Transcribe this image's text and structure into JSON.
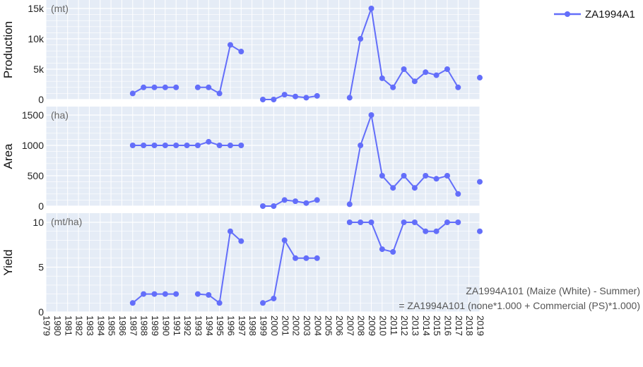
{
  "chart_data": {
    "type": "line",
    "legend": {
      "name": "ZA1994A1",
      "placement": "top-right"
    },
    "color": "#636efa",
    "x_ticks": [
      "1979",
      "1980",
      "1981",
      "1982",
      "1983",
      "1984",
      "1985",
      "1986",
      "1987",
      "1988",
      "1989",
      "1990",
      "1991",
      "1992",
      "1993",
      "1994",
      "1995",
      "1996",
      "1997",
      "1998",
      "1999",
      "2000",
      "2001",
      "2002",
      "2003",
      "2004",
      "2005",
      "2006",
      "2007",
      "2008",
      "2009",
      "2010",
      "2011",
      "2012",
      "2013",
      "2014",
      "2015",
      "2016",
      "2017",
      "2018",
      "2019"
    ],
    "xlim": [
      1979,
      2019
    ],
    "panels": [
      {
        "ylabel": "Production",
        "unit": "(mt)",
        "ylim": [
          0,
          15000
        ],
        "ytick_values": [
          0,
          5000,
          10000,
          15000
        ],
        "ytick_labels": [
          "0",
          "5k",
          "10k",
          "15k"
        ],
        "segments": [
          [
            [
              1987,
              1000
            ],
            [
              1988,
              2000
            ],
            [
              1989,
              2000
            ],
            [
              1990,
              2000
            ],
            [
              1991,
              2000
            ]
          ],
          [
            [
              1993,
              2000
            ],
            [
              1994,
              2000
            ],
            [
              1995,
              1000
            ],
            [
              1996,
              9000
            ],
            [
              1997,
              7900
            ]
          ],
          [
            [
              1999,
              0
            ],
            [
              2000,
              0
            ],
            [
              2001,
              800
            ],
            [
              2002,
              500
            ],
            [
              2003,
              300
            ],
            [
              2004,
              600
            ]
          ],
          [
            [
              2007,
              300
            ],
            [
              2008,
              10000
            ],
            [
              2009,
              15000
            ],
            [
              2010,
              3500
            ],
            [
              2011,
              2000
            ],
            [
              2012,
              5000
            ],
            [
              2013,
              3000
            ],
            [
              2014,
              4500
            ],
            [
              2015,
              4000
            ],
            [
              2016,
              5000
            ],
            [
              2017,
              2000
            ]
          ],
          [
            [
              2019,
              3600
            ]
          ]
        ]
      },
      {
        "ylabel": "Area",
        "unit": "(ha)",
        "ylim": [
          0,
          1500
        ],
        "ytick_values": [
          0,
          500,
          1000,
          1500
        ],
        "ytick_labels": [
          "0",
          "500",
          "1000",
          "1500"
        ],
        "segments": [
          [
            [
              1987,
              1000
            ],
            [
              1988,
              1000
            ],
            [
              1989,
              1000
            ],
            [
              1990,
              1000
            ],
            [
              1991,
              1000
            ],
            [
              1992,
              1000
            ],
            [
              1993,
              1000
            ],
            [
              1994,
              1060
            ],
            [
              1995,
              1000
            ],
            [
              1996,
              1000
            ],
            [
              1997,
              1000
            ]
          ],
          [
            [
              1999,
              0
            ],
            [
              2000,
              0
            ],
            [
              2001,
              100
            ],
            [
              2002,
              80
            ],
            [
              2003,
              50
            ],
            [
              2004,
              100
            ]
          ],
          [
            [
              2007,
              30
            ],
            [
              2008,
              1000
            ],
            [
              2009,
              1500
            ],
            [
              2010,
              500
            ],
            [
              2011,
              300
            ],
            [
              2012,
              500
            ],
            [
              2013,
              300
            ],
            [
              2014,
              500
            ],
            [
              2015,
              450
            ],
            [
              2016,
              500
            ],
            [
              2017,
              200
            ]
          ],
          [
            [
              2019,
              400
            ]
          ]
        ]
      },
      {
        "ylabel": "Yield",
        "unit": "(mt/ha)",
        "ylim": [
          0,
          10
        ],
        "ytick_values": [
          0,
          5,
          10
        ],
        "ytick_labels": [
          "0",
          "5",
          "10"
        ],
        "segments": [
          [
            [
              1987,
              1
            ],
            [
              1988,
              2
            ],
            [
              1989,
              2
            ],
            [
              1990,
              2
            ],
            [
              1991,
              2
            ]
          ],
          [
            [
              1993,
              2
            ],
            [
              1994,
              1.9
            ],
            [
              1995,
              1
            ],
            [
              1996,
              9
            ],
            [
              1997,
              7.9
            ]
          ],
          [
            [
              1999,
              1
            ],
            [
              2000,
              1.5
            ],
            [
              2001,
              8
            ],
            [
              2002,
              6
            ],
            [
              2003,
              6
            ],
            [
              2004,
              6
            ]
          ],
          [
            [
              2007,
              10
            ],
            [
              2008,
              10
            ],
            [
              2009,
              10
            ],
            [
              2010,
              7
            ],
            [
              2011,
              6.7
            ],
            [
              2012,
              10
            ],
            [
              2013,
              10
            ],
            [
              2014,
              9
            ],
            [
              2015,
              9
            ],
            [
              2016,
              10
            ],
            [
              2017,
              10
            ]
          ],
          [
            [
              2019,
              9
            ]
          ]
        ]
      }
    ],
    "annotation": {
      "line1": "ZA1994A101 (Maize (White) - Summer)",
      "line2": "= ZA1994A101 (none*1.000 + Commercial (PS)*1.000)"
    },
    "grid": true
  }
}
